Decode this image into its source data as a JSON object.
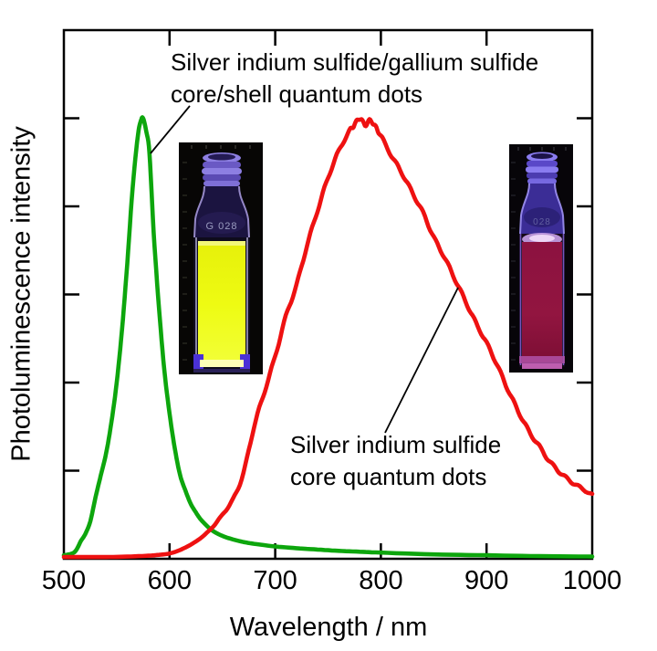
{
  "figure": {
    "background": "#ffffff",
    "frame_color": "#000000",
    "annotations": [
      {
        "id": "core-shell-label",
        "lines": [
          "Silver indium sulfide/gallium sulfide",
          "core/shell quantum dots"
        ]
      },
      {
        "id": "core-label",
        "lines": [
          "Silver indium sulfide",
          "core quantum dots"
        ]
      }
    ],
    "photos": [
      {
        "description": "vial of yellow-glowing core/shell quantum dots under UV light",
        "vial_label": "G 028",
        "liquid_color": "#eefb12",
        "glow_color": "#8d7fe2"
      },
      {
        "description": "vial of dark red core quantum dots under UV light",
        "vial_label": "028",
        "liquid_color": "#8c1240",
        "glow_color": "#8a7cf0"
      }
    ]
  },
  "chart_data": {
    "type": "line",
    "title": "",
    "xlabel": "Wavelength / nm",
    "ylabel": "Photoluminescence intensity",
    "xlim": [
      500,
      1000
    ],
    "ylim": [
      0,
      1.2
    ],
    "x_ticks": [
      500,
      600,
      700,
      800,
      900,
      1000
    ],
    "x_inner_ticks": [
      600,
      700,
      800,
      900
    ],
    "y_inner_tick_count": 5,
    "grid": false,
    "legend": "none (arrow annotations used instead)",
    "series": [
      {
        "name": "Silver indium sulfide/gallium sulfide core/shell quantum dots",
        "color": "#0da60d",
        "peak_nm": 575,
        "noisy": false,
        "x": [
          500,
          510,
          516,
          520,
          525,
          530,
          535,
          540,
          545,
          550,
          555,
          560,
          565,
          570,
          573,
          575,
          578,
          581,
          585,
          590,
          595,
          600,
          605,
          610,
          615,
          620,
          625,
          630,
          640,
          650,
          660,
          670,
          680,
          700,
          720,
          740,
          760,
          780,
          800,
          850,
          900,
          950,
          1000
        ],
        "y": [
          0.008,
          0.015,
          0.04,
          0.055,
          0.085,
          0.14,
          0.19,
          0.24,
          0.31,
          0.4,
          0.52,
          0.67,
          0.84,
          0.96,
          0.995,
          1.0,
          0.97,
          0.92,
          0.74,
          0.57,
          0.43,
          0.33,
          0.25,
          0.19,
          0.155,
          0.125,
          0.105,
          0.088,
          0.065,
          0.052,
          0.044,
          0.038,
          0.034,
          0.028,
          0.024,
          0.021,
          0.018,
          0.016,
          0.014,
          0.01,
          0.008,
          0.006,
          0.005
        ]
      },
      {
        "name": "Silver indium sulfide core quantum dots",
        "color": "#ee1111",
        "peak_nm": 780,
        "noisy": true,
        "x": [
          500,
          520,
          540,
          560,
          580,
          590,
          600,
          610,
          620,
          630,
          640,
          650,
          660,
          670,
          680,
          690,
          700,
          710,
          720,
          730,
          740,
          750,
          760,
          770,
          775,
          780,
          785,
          790,
          795,
          800,
          810,
          820,
          830,
          840,
          850,
          860,
          870,
          880,
          890,
          900,
          910,
          920,
          930,
          940,
          950,
          960,
          970,
          980,
          990,
          1000
        ],
        "y": [
          0.004,
          0.004,
          0.004,
          0.005,
          0.007,
          0.009,
          0.012,
          0.02,
          0.032,
          0.048,
          0.07,
          0.1,
          0.135,
          0.195,
          0.3,
          0.38,
          0.46,
          0.55,
          0.62,
          0.71,
          0.79,
          0.865,
          0.925,
          0.97,
          0.985,
          1.0,
          0.985,
          0.995,
          0.98,
          0.96,
          0.915,
          0.875,
          0.83,
          0.785,
          0.73,
          0.685,
          0.635,
          0.585,
          0.535,
          0.49,
          0.44,
          0.385,
          0.335,
          0.29,
          0.255,
          0.22,
          0.195,
          0.175,
          0.16,
          0.145
        ]
      }
    ]
  }
}
